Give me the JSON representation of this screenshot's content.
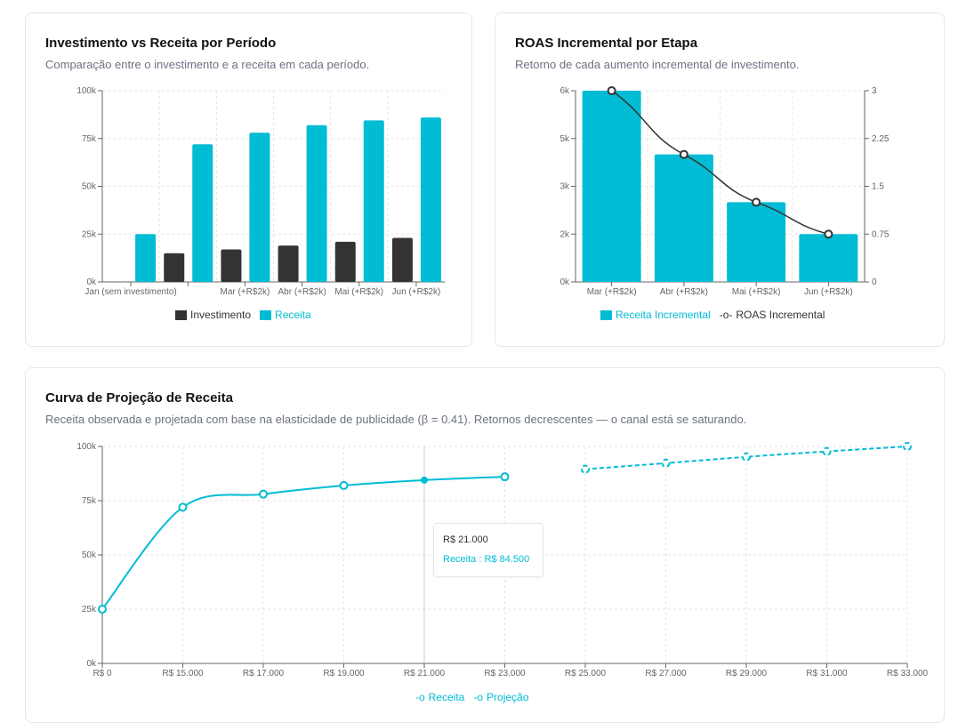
{
  "colors": {
    "cyan": "#00bcd4",
    "dark": "#333333",
    "grid": "#e5e5e5"
  },
  "chart_data": [
    {
      "type": "bar",
      "title": "Investimento vs Receita por Período",
      "subtitle": "Comparação entre o investimento e a receita em cada período.",
      "categories": [
        "Jan (sem investimento)",
        "",
        "Mar (+R$2k)",
        "Abr (+R$2k)",
        "Mai (+R$2k)",
        "Jun (+R$2k)"
      ],
      "series": [
        {
          "name": "Investimento",
          "color": "#333333",
          "values": [
            0,
            15000,
            17000,
            19000,
            21000,
            23000
          ]
        },
        {
          "name": "Receita",
          "color": "#00bcd4",
          "values": [
            25000,
            72000,
            78000,
            82000,
            84500,
            86000
          ]
        }
      ],
      "ylim": [
        0,
        100000
      ],
      "yticks": [
        "0k",
        "25k",
        "50k",
        "75k",
        "100k"
      ],
      "grid": true,
      "legend": "bottom"
    },
    {
      "type": "bar+line",
      "title": "ROAS Incremental por Etapa",
      "subtitle": "Retorno de cada aumento incremental de investimento.",
      "categories": [
        "Mar (+R$2k)",
        "Abr (+R$2k)",
        "Mai (+R$2k)",
        "Jun (+R$2k)"
      ],
      "series": [
        {
          "name": "Receita Incremental",
          "color": "#00bcd4",
          "axis": "left",
          "values": [
            6000,
            4000,
            2500,
            1500
          ]
        },
        {
          "name": "ROAS Incremental",
          "color": "#333333",
          "axis": "right",
          "values": [
            3,
            2,
            1.25,
            0.75
          ]
        }
      ],
      "ylim": [
        0,
        6000
      ],
      "yticks": [
        "0k",
        "2k",
        "3k",
        "5k",
        "6k"
      ],
      "y2lim": [
        0,
        3
      ],
      "y2ticks": [
        "0",
        "0.75",
        "1.5",
        "2.25",
        "3"
      ],
      "grid": true,
      "legend": "bottom"
    },
    {
      "type": "line",
      "title": "Curva de Projeção de Receita",
      "subtitle": "Receita observada e projetada com base na elasticidade de publicidade (β = 0.41). Retornos decrescentes — o canal está se saturando.",
      "categories": [
        "R$ 0",
        "R$ 15.000",
        "R$ 17.000",
        "R$ 19.000",
        "R$ 21.000",
        "R$ 23.000",
        "R$ 25.000",
        "R$ 27.000",
        "R$ 29.000",
        "R$ 31.000",
        "R$ 33.000"
      ],
      "series": [
        {
          "name": "Receita",
          "color": "#00bcd4",
          "dashed": false,
          "values": [
            25000,
            72000,
            78000,
            82000,
            84500,
            86000,
            null,
            null,
            null,
            null,
            null
          ]
        },
        {
          "name": "Projeção",
          "color": "#00bcd4",
          "dashed": true,
          "values": [
            null,
            null,
            null,
            null,
            null,
            null,
            89500,
            92300,
            95200,
            97700,
            100000
          ]
        }
      ],
      "ylim": [
        0,
        100000
      ],
      "yticks": [
        "0k",
        "25k",
        "50k",
        "75k",
        "100k"
      ],
      "grid": true,
      "legend": "bottom",
      "tooltip": {
        "title": "R$ 21.000",
        "label": "Receita : R$ 84.500"
      }
    }
  ]
}
